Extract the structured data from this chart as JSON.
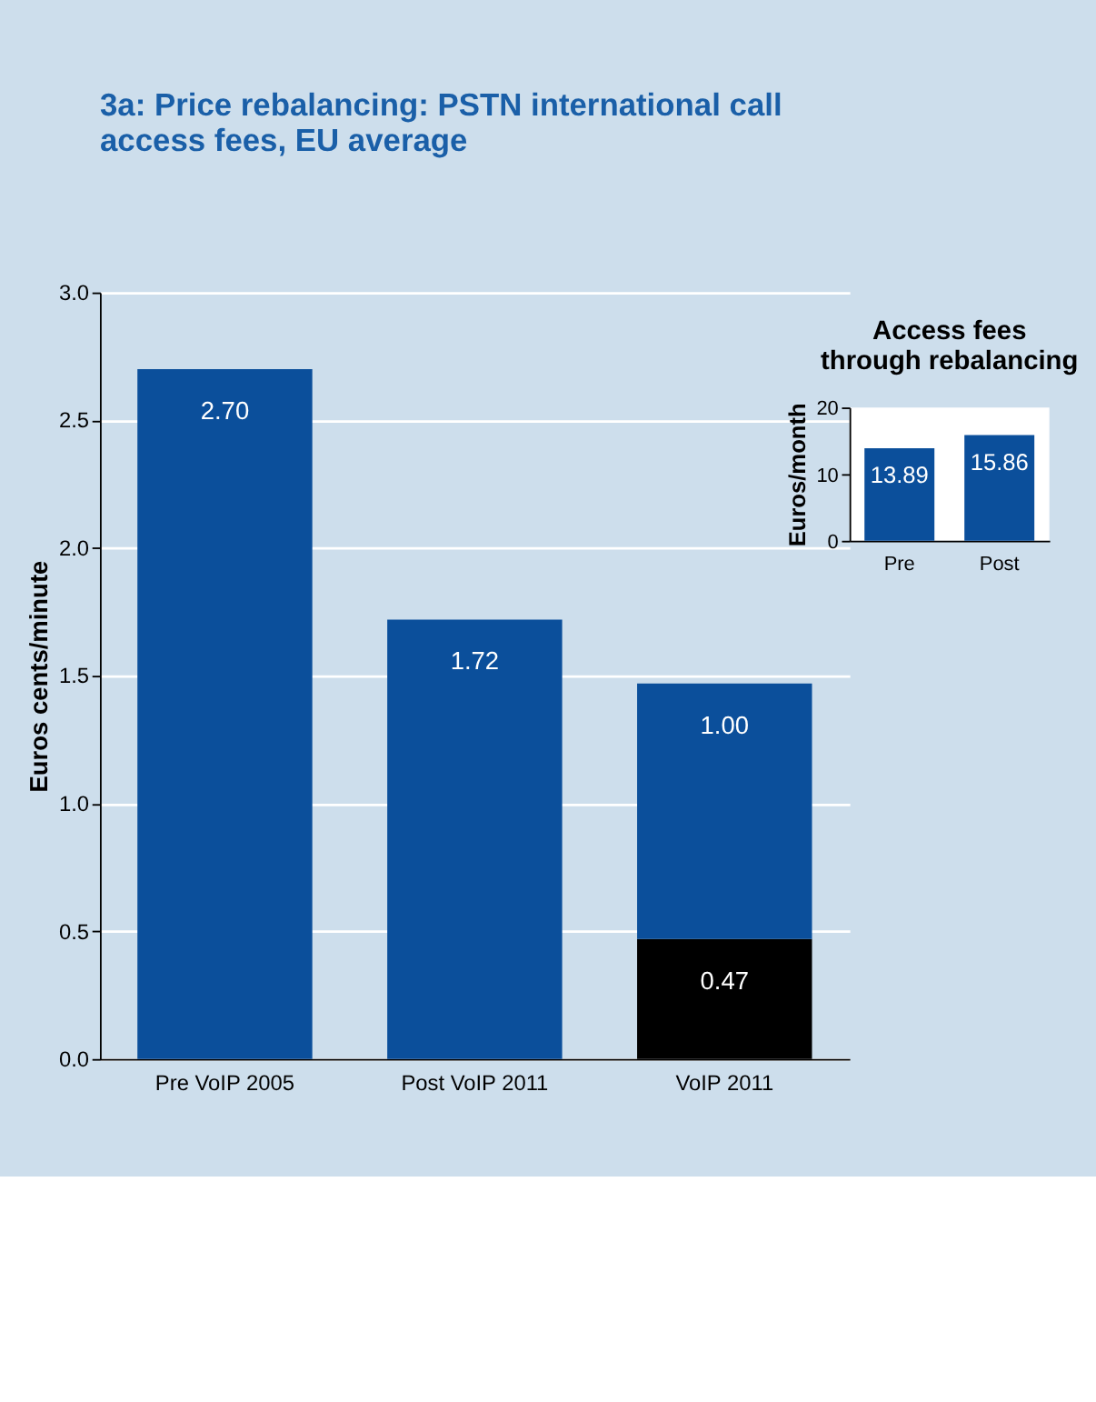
{
  "chart_data": [
    {
      "type": "bar",
      "title": "3a: Price rebalancing: PSTN international call access fees, EU average",
      "ylabel": "Euros cents/minute",
      "categories": [
        "Pre VoIP 2005",
        "Post VoIP 2011",
        "VoIP 2011"
      ],
      "stacked": true,
      "series": [
        {
          "color": "#000000",
          "values": [
            null,
            null,
            0.47
          ]
        },
        {
          "color": "#0b4f9b",
          "values": [
            2.7,
            1.72,
            1.0
          ]
        }
      ],
      "value_labels": [
        [
          null,
          null,
          "0.47"
        ],
        [
          "2.70",
          "1.72",
          "1.00"
        ]
      ],
      "ylim": [
        0,
        3
      ],
      "yticks": [
        {
          "value": 0,
          "label": "0.0"
        },
        0.5,
        {
          "value": 1,
          "label": "1.0"
        },
        1.5,
        {
          "value": 2,
          "label": "2.0"
        },
        2.5,
        {
          "value": 3,
          "label": "3.0"
        }
      ],
      "grid": "y",
      "legend": false
    },
    {
      "type": "bar",
      "title": "Access fees through rebalancing",
      "ylabel": "Euros/month",
      "categories": [
        "Pre",
        "Post"
      ],
      "values": [
        13.89,
        15.86
      ],
      "color": "#0b4f9b",
      "ylim": [
        0,
        20
      ],
      "yticks": [
        0,
        10,
        20
      ],
      "data_labels": true,
      "legend": false
    }
  ]
}
